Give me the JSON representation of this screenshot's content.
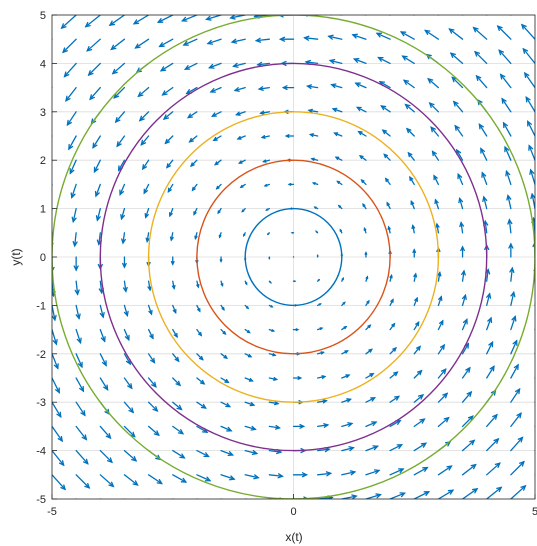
{
  "chart_data": {
    "type": "quiver+line",
    "title": "",
    "xlabel": "x(t)",
    "ylabel": "y(t)",
    "xlim": [
      -5,
      5
    ],
    "ylim": [
      -5,
      5
    ],
    "xticks": [
      -5,
      0,
      5
    ],
    "yticks": [
      -5,
      -4,
      -3,
      -2,
      -1,
      0,
      1,
      2,
      3,
      4,
      5
    ],
    "xtick_labels": [
      "-5",
      "0",
      "5"
    ],
    "ytick_labels": [
      "-5",
      "-4",
      "-3",
      "-2",
      "-1",
      "0",
      "1",
      "2",
      "3",
      "4",
      "5"
    ],
    "grid": true,
    "legend": "none",
    "vector_field": {
      "description_visible": "rotational field, arrows circulate counter-clockwise",
      "grid_x_min": -5,
      "grid_x_max": 5,
      "grid_y_min": -5,
      "grid_y_max": 5,
      "spacing": 0.5,
      "vx": "-y",
      "vy": "x",
      "color": "#0072BD"
    },
    "series": [
      {
        "shape": "circle",
        "radius": 1,
        "color": "#0072BD"
      },
      {
        "shape": "circle",
        "radius": 2,
        "color": "#D95319"
      },
      {
        "shape": "circle",
        "radius": 3,
        "color": "#EDB120"
      },
      {
        "shape": "circle",
        "radius": 4,
        "color": "#7E2F8E"
      },
      {
        "shape": "circle",
        "radius": 5,
        "color": "#77AC30"
      }
    ]
  }
}
